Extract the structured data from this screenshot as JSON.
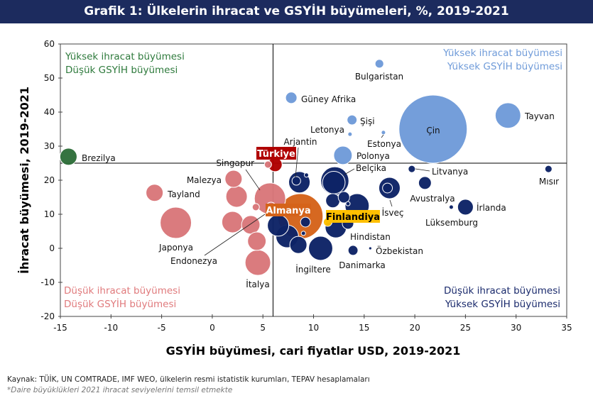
{
  "title": "Grafik 1: Ülkelerin ihracat ve GSYİH büyümeleri, %, 2019-2021",
  "source": "Kaynak: TÜİK, UN COMTRADE, IMF WEO, ülkelerin resmi istatistik kurumları, TEPAV hesaplamaları",
  "note": "*Daire büyüklükleri 2021 ihracat seviyelerini temsil etmekte",
  "chart_data": {
    "type": "bubble",
    "xlabel": "GSYİH büyümesi, cari fiyatlar USD, 2019-2021",
    "ylabel": "İhracat büyümesi, 2019-2021",
    "xlim": [
      -15,
      35
    ],
    "ylim": [
      -20,
      60
    ],
    "xticks": [
      "-15",
      "-10",
      "-5",
      "0",
      "5",
      "10",
      "15",
      "20",
      "25",
      "30",
      "35"
    ],
    "yticks": [
      "-20",
      "-10",
      "0",
      "10",
      "20",
      "30",
      "40",
      "50",
      "60"
    ],
    "reference_lines": {
      "x": 6,
      "y": 25
    },
    "size_meaning": "relative 2021 export level",
    "quadrants": {
      "top_left": [
        "Yüksek ihracat büyümesi",
        "Düşük GSYİH büyümesi"
      ],
      "top_right": [
        "Yüksek ihracat büyümesi",
        "Yüksek GSYİH büyümesi"
      ],
      "bottom_left": [
        "Düşük ihracat büyümesi",
        "Düşük GSYİH büyümesi"
      ],
      "bottom_right": [
        "Düşük ihracat büyümesi",
        "Yüksek GSYİH büyümesi"
      ]
    },
    "colors": {
      "high_high": "#6f9bd9",
      "low_high": "#0d2366",
      "low_low": "#d9777a",
      "high_low": "#2e6e3a",
      "turkiye": "#b00000",
      "almanya": "#d5631a",
      "finlandiya": "#ffc000",
      "q_top_left": "#2e7a3c",
      "q_top_right": "#6f9bd9",
      "q_bottom_left": "#e07a7c",
      "q_bottom_right": "#1a2a6c"
    },
    "points": [
      {
        "name": "Çin",
        "x": 21.8,
        "y": 35.0,
        "size": 100,
        "group": "high_high"
      },
      {
        "name": "Almanya",
        "x": 8.7,
        "y": 9.4,
        "size": 44,
        "group": "almanya"
      },
      {
        "name": "Japonya",
        "x": -3.6,
        "y": 7.5,
        "size": 21,
        "group": "low_low"
      },
      {
        "name": "Singapur",
        "x": 5.7,
        "y": 14.6,
        "size": 21,
        "group": "low_low"
      },
      {
        "name": "Belçika",
        "x": 12.1,
        "y": 19.8,
        "size": 17,
        "group": "low_high"
      },
      {
        "name": "",
        "x": 12.0,
        "y": 19.3,
        "size": 11,
        "group": "low_high"
      },
      {
        "name": "Tayvan",
        "x": 29.2,
        "y": 39.0,
        "size": 14,
        "group": "high_high"
      },
      {
        "name": "İtalya",
        "x": 4.5,
        "y": -4.2,
        "size": 14,
        "group": "low_low"
      },
      {
        "name": "",
        "x": 14.3,
        "y": 12.5,
        "size": 12.5,
        "group": "low_high"
      },
      {
        "name": "İngiltere",
        "x": 10.7,
        "y": 0.0,
        "size": 12.5,
        "group": "low_high"
      },
      {
        "name": "",
        "x": 7.4,
        "y": 3.5,
        "size": 11,
        "group": "low_high"
      },
      {
        "name": "İsveç",
        "x": 17.5,
        "y": 17.7,
        "size": 9.8,
        "group": "low_high"
      },
      {
        "name": "",
        "x": 8.6,
        "y": 19.4,
        "size": 9.8,
        "group": "low_high"
      },
      {
        "name": "Hindistan",
        "x": 12.2,
        "y": 6.2,
        "size": 9.8,
        "group": "low_high"
      },
      {
        "name": "",
        "x": 6.5,
        "y": 6.7,
        "size": 9.8,
        "group": "low_high"
      },
      {
        "name": "",
        "x": 2.4,
        "y": 15.2,
        "size": 9.8,
        "group": "low_low"
      },
      {
        "name": "",
        "x": 2.0,
        "y": 7.7,
        "size": 9.8,
        "group": "low_low"
      },
      {
        "name": "Polonya",
        "x": 12.9,
        "y": 27.3,
        "size": 7.3,
        "group": "high_high"
      },
      {
        "name": "",
        "x": 3.8,
        "y": 6.9,
        "size": 7.3,
        "group": "low_low"
      },
      {
        "name": "",
        "x": 4.4,
        "y": 2.1,
        "size": 7.3,
        "group": "low_low"
      },
      {
        "name": "Tayland",
        "x": -5.7,
        "y": 16.3,
        "size": 6.3,
        "group": "low_low"
      },
      {
        "name": "Malezya",
        "x": 2.1,
        "y": 20.4,
        "size": 6.3,
        "group": "low_low"
      },
      {
        "name": "Brezilya",
        "x": -14.2,
        "y": 26.9,
        "size": 6.3,
        "group": "high_low"
      },
      {
        "name": "",
        "x": 8.5,
        "y": 1.0,
        "size": 6.3,
        "group": "low_high"
      },
      {
        "name": "İrlanda",
        "x": 25.0,
        "y": 12.1,
        "size": 5.3,
        "group": "low_high"
      },
      {
        "name": "",
        "x": 17.3,
        "y": 17.7,
        "size": 2.1,
        "group": "low_high"
      },
      {
        "name": "",
        "x": 11.9,
        "y": 14.0,
        "size": 4.3,
        "group": "low_high"
      },
      {
        "name": "Türkiye",
        "x": 6.2,
        "y": 24.6,
        "size": 4.3,
        "group": "turkiye"
      },
      {
        "name": "Avustralya",
        "x": 21.0,
        "y": 19.2,
        "size": 3.5,
        "group": "low_high"
      },
      {
        "name": "Güney Afrika",
        "x": 7.8,
        "y": 44.2,
        "size": 2.8,
        "group": "high_high"
      },
      {
        "name": "",
        "x": 13.0,
        "y": 15.0,
        "size": 2.8,
        "group": "low_high"
      },
      {
        "name": "",
        "x": 13.4,
        "y": 7.3,
        "size": 2.8,
        "group": "low_high"
      },
      {
        "name": "Şişi",
        "x": 13.8,
        "y": 37.7,
        "size": 2.1,
        "group": "high_high"
      },
      {
        "name": "Danimarka",
        "x": 13.9,
        "y": -0.6,
        "size": 2.1,
        "group": "low_high"
      },
      {
        "name": "",
        "x": 9.2,
        "y": 7.7,
        "size": 2.1,
        "group": "low_high"
      },
      {
        "name": "Endonezya",
        "x": 5.8,
        "y": 12.1,
        "size": 2.1,
        "group": "low_low"
      },
      {
        "name": "Bulgaristan",
        "x": 16.5,
        "y": 54.2,
        "size": 1.6,
        "group": "high_high"
      },
      {
        "name": "Arjantin",
        "x": 8.3,
        "y": 19.8,
        "size": 1.6,
        "group": "low_high"
      },
      {
        "name": "Finlandiya",
        "x": 11.4,
        "y": 7.7,
        "size": 1.6,
        "group": "finlandiya"
      },
      {
        "name": "Litvanya",
        "x": 19.7,
        "y": 23.3,
        "size": 1.1,
        "group": "low_high"
      },
      {
        "name": "Mısır",
        "x": 33.2,
        "y": 23.3,
        "size": 1.1,
        "group": "low_high"
      },
      {
        "name": "",
        "x": 4.3,
        "y": 12.1,
        "size": 1.1,
        "group": "low_low"
      },
      {
        "name": "",
        "x": 5.5,
        "y": 24.6,
        "size": 1.1,
        "group": "low_low"
      },
      {
        "name": "Letonya",
        "x": 13.6,
        "y": 33.5,
        "size": 0.4,
        "group": "high_high"
      },
      {
        "name": "Estonya",
        "x": 16.9,
        "y": 34.0,
        "size": 0.4,
        "group": "high_high"
      },
      {
        "name": "Lüksemburg",
        "x": 23.6,
        "y": 12.1,
        "size": 0.4,
        "group": "low_high"
      },
      {
        "name": "",
        "x": 9.3,
        "y": 21.5,
        "size": 0.4,
        "group": "low_high"
      },
      {
        "name": "",
        "x": 13.4,
        "y": 13.1,
        "size": 0.4,
        "group": "low_high"
      },
      {
        "name": "",
        "x": 9.0,
        "y": 4.4,
        "size": 0.4,
        "group": "low_high"
      },
      {
        "name": "Özbekistan",
        "x": 15.6,
        "y": 0.0,
        "size": 0.2,
        "group": "low_high"
      }
    ]
  }
}
